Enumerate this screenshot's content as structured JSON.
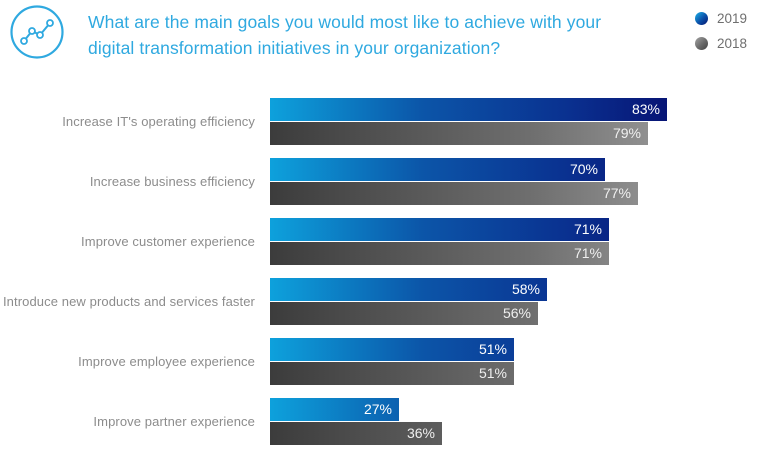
{
  "header": {
    "title": "What are the main goals you would most like to achieve with your digital transformation initiatives in your organization?",
    "icon": "line-chart-icon"
  },
  "legend": {
    "items": [
      {
        "label": "2019",
        "color_start": "#1aa2de",
        "color_end": "#071a74"
      },
      {
        "label": "2018",
        "color_start": "#9a9a9a",
        "color_end": "#474747"
      }
    ],
    "position": "top-right"
  },
  "colors": {
    "title_blue": "#2fa9e0",
    "category_label_gray": "#8c8c8c",
    "value_label": "#ffffff",
    "blue_gradient": [
      "#0da1dc",
      "#050b60"
    ],
    "gray_gradient": [
      "#3c3c3c",
      "#acacac"
    ],
    "background": "#ffffff"
  },
  "chart_data": {
    "type": "bar",
    "orientation": "horizontal",
    "title": "What are the main goals you would most like to achieve with your digital transformation initiatives in your organization?",
    "categories": [
      "Increase IT's operating efficiency",
      "Increase business efficiency",
      "Improve customer experience",
      "Introduce new products and services faster",
      "Improve employee experience",
      "Improve partner experience"
    ],
    "series": [
      {
        "name": "2019",
        "values": [
          83,
          70,
          71,
          58,
          51,
          27
        ],
        "unit": "%"
      },
      {
        "name": "2018",
        "values": [
          79,
          77,
          71,
          56,
          51,
          36
        ],
        "unit": "%"
      }
    ],
    "xlabel": "",
    "ylabel": "",
    "xlim": [
      0,
      100
    ],
    "grid": false,
    "value_labels": "inside-end",
    "legend_position": "top-right"
  }
}
